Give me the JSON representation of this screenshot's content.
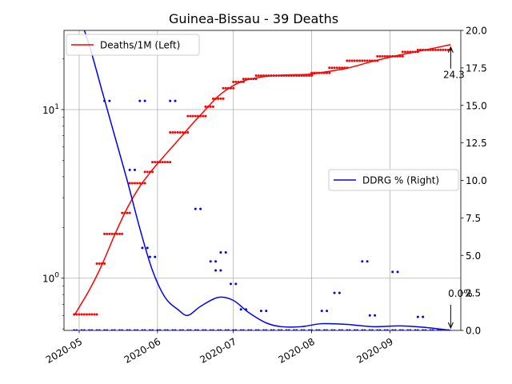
{
  "chart_data": {
    "type": "line",
    "title": "Guinea-Bissau - 39 Deaths",
    "x_ticks": [
      "2020-05",
      "2020-06",
      "2020-07",
      "2020-08",
      "2020-09"
    ],
    "x_range": [
      "2020-04-25",
      "2020-09-29"
    ],
    "left_axis": {
      "scale": "log",
      "range": [
        0.49,
        29.5
      ],
      "major_ticks": [
        1,
        10
      ],
      "major_tick_labels": [
        "10^0",
        "10^1"
      ]
    },
    "right_axis": {
      "scale": "linear",
      "range": [
        0,
        20
      ],
      "ticks": [
        "0.0",
        "2.5",
        "5.0",
        "7.5",
        "10.0",
        "12.5",
        "15.0",
        "17.5",
        "20.0"
      ]
    },
    "grid": true,
    "legends": [
      {
        "label": "Deaths/1M (Left)",
        "color": "#ff0000",
        "placement": "upper-left"
      },
      {
        "label": "DDRG % (Right)",
        "color": "#0000ff",
        "placement": "center-right"
      }
    ],
    "series": [
      {
        "name": "Deaths/1M (Left)",
        "axis": "left",
        "color": "#ff0000",
        "smooth_line": [
          [
            "2020-04-29",
            0.6
          ],
          [
            "2020-05-05",
            0.85
          ],
          [
            "2020-05-10",
            1.2
          ],
          [
            "2020-05-15",
            1.8
          ],
          [
            "2020-05-20",
            2.6
          ],
          [
            "2020-05-25",
            3.5
          ],
          [
            "2020-05-30",
            4.4
          ],
          [
            "2020-06-05",
            5.6
          ],
          [
            "2020-06-10",
            6.8
          ],
          [
            "2020-06-15",
            8.3
          ],
          [
            "2020-06-20",
            10.0
          ],
          [
            "2020-06-25",
            12.0
          ],
          [
            "2020-06-30",
            13.6
          ],
          [
            "2020-07-05",
            14.8
          ],
          [
            "2020-07-12",
            15.6
          ],
          [
            "2020-07-20",
            16.0
          ],
          [
            "2020-07-31",
            16.2
          ],
          [
            "2020-08-05",
            16.6
          ],
          [
            "2020-08-15",
            17.6
          ],
          [
            "2020-08-25",
            19.3
          ],
          [
            "2020-09-05",
            21.1
          ],
          [
            "2020-09-15",
            22.6
          ],
          [
            "2020-09-25",
            24.3
          ]
        ],
        "daily_steps": [
          [
            "2020-04-29",
            0.61
          ],
          [
            "2020-05-08",
            1.22
          ],
          [
            "2020-05-11",
            1.83
          ],
          [
            "2020-05-18",
            2.44
          ],
          [
            "2020-05-21",
            3.66
          ],
          [
            "2020-05-27",
            4.27
          ],
          [
            "2020-05-30",
            4.88
          ],
          [
            "2020-06-06",
            7.32
          ],
          [
            "2020-06-13",
            9.15
          ],
          [
            "2020-06-20",
            10.4
          ],
          [
            "2020-06-23",
            11.6
          ],
          [
            "2020-06-27",
            13.4
          ],
          [
            "2020-07-01",
            14.6
          ],
          [
            "2020-07-05",
            15.2
          ],
          [
            "2020-07-10",
            15.9
          ],
          [
            "2020-08-01",
            16.5
          ],
          [
            "2020-08-08",
            17.7
          ],
          [
            "2020-08-15",
            19.5
          ],
          [
            "2020-08-27",
            20.7
          ],
          [
            "2020-09-06",
            22.0
          ],
          [
            "2020-09-12",
            22.6
          ],
          [
            "2020-09-25",
            22.6
          ]
        ],
        "end_label": "24.3"
      },
      {
        "name": "DDRG % (Right)",
        "axis": "right",
        "color": "#0000ff",
        "smooth_line": [
          [
            "2020-04-29",
            22.0
          ],
          [
            "2020-05-05",
            19.0
          ],
          [
            "2020-05-10",
            16.0
          ],
          [
            "2020-05-15",
            13.0
          ],
          [
            "2020-05-20",
            10.0
          ],
          [
            "2020-05-25",
            6.8
          ],
          [
            "2020-05-30",
            4.0
          ],
          [
            "2020-06-04",
            2.2
          ],
          [
            "2020-06-09",
            1.4
          ],
          [
            "2020-06-13",
            1.0
          ],
          [
            "2020-06-18",
            1.6
          ],
          [
            "2020-06-25",
            2.2
          ],
          [
            "2020-07-01",
            2.0
          ],
          [
            "2020-07-07",
            1.2
          ],
          [
            "2020-07-14",
            0.5
          ],
          [
            "2020-07-20",
            0.25
          ],
          [
            "2020-07-28",
            0.25
          ],
          [
            "2020-08-05",
            0.45
          ],
          [
            "2020-08-15",
            0.4
          ],
          [
            "2020-08-25",
            0.25
          ],
          [
            "2020-09-05",
            0.3
          ],
          [
            "2020-09-15",
            0.2
          ],
          [
            "2020-09-25",
            0.0
          ]
        ],
        "daily_dots": [
          [
            "2020-05-11",
            15.3
          ],
          [
            "2020-05-13",
            15.3
          ],
          [
            "2020-05-25",
            15.3
          ],
          [
            "2020-05-27",
            15.3
          ],
          [
            "2020-06-06",
            15.3
          ],
          [
            "2020-06-08",
            15.3
          ],
          [
            "2020-05-21",
            10.7
          ],
          [
            "2020-05-23",
            10.7
          ],
          [
            "2020-06-16",
            8.1
          ],
          [
            "2020-06-18",
            8.1
          ],
          [
            "2020-05-26",
            5.5
          ],
          [
            "2020-05-28",
            5.5
          ],
          [
            "2020-05-29",
            4.9
          ],
          [
            "2020-05-31",
            4.9
          ],
          [
            "2020-06-26",
            5.2
          ],
          [
            "2020-06-28",
            5.2
          ],
          [
            "2020-06-22",
            4.6
          ],
          [
            "2020-06-24",
            4.6
          ],
          [
            "2020-06-24",
            4.0
          ],
          [
            "2020-06-26",
            4.0
          ],
          [
            "2020-06-30",
            3.1
          ],
          [
            "2020-07-02",
            3.1
          ],
          [
            "2020-07-04",
            1.4
          ],
          [
            "2020-07-06",
            1.4
          ],
          [
            "2020-07-12",
            1.3
          ],
          [
            "2020-07-14",
            1.3
          ],
          [
            "2020-08-05",
            1.3
          ],
          [
            "2020-08-07",
            1.3
          ],
          [
            "2020-08-10",
            2.5
          ],
          [
            "2020-08-12",
            2.5
          ],
          [
            "2020-08-21",
            4.6
          ],
          [
            "2020-08-23",
            4.6
          ],
          [
            "2020-08-24",
            1.0
          ],
          [
            "2020-08-26",
            1.0
          ],
          [
            "2020-09-02",
            3.9
          ],
          [
            "2020-09-04",
            3.9
          ],
          [
            "2020-09-12",
            0.9
          ],
          [
            "2020-09-14",
            0.9
          ]
        ],
        "end_label": "0.0%"
      }
    ]
  }
}
